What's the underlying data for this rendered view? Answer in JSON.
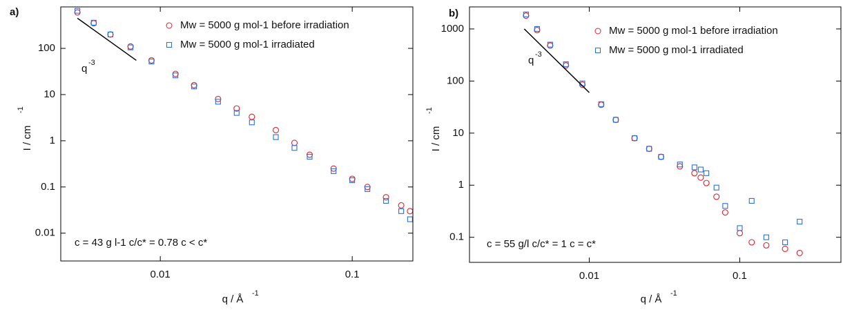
{
  "chart_data": [
    {
      "type": "scatter",
      "panel_label": "a)",
      "log_x": true,
      "log_y": true,
      "xlabel": "q / Å",
      "xlabel_sup": "-1",
      "ylabel": "I / cm",
      "ylabel_sup": "-1",
      "xlim": [
        0.00303,
        0.207
      ],
      "ylim": [
        0.0025,
        790
      ],
      "xticks": [
        0.01,
        0.1
      ],
      "yticks": [
        0.01,
        0.1,
        1,
        10,
        100
      ],
      "legend": "upper right",
      "annotation": "c = 43 g l-1 c/c* = 0.78 c < c*",
      "fit_label": "q",
      "fit_label_sup": "-3",
      "fit_line": {
        "x": [
          0.0037,
          0.0075
        ],
        "y": [
          450,
          55
        ]
      },
      "x": [
        0.0037,
        0.0045,
        0.0055,
        0.007,
        0.009,
        0.012,
        0.015,
        0.02,
        0.025,
        0.03,
        0.04,
        0.05,
        0.06,
        0.08,
        0.1,
        0.12,
        0.15,
        0.18,
        0.2
      ],
      "series": [
        {
          "name": "Mw = 5000 g mol-1 before irradiation",
          "color": "#e0202a",
          "marker": "circle",
          "values": [
            600,
            350,
            200,
            110,
            55,
            28,
            16,
            8,
            5,
            3.3,
            1.7,
            0.9,
            0.5,
            0.25,
            0.15,
            0.1,
            0.06,
            0.04,
            0.03
          ]
        },
        {
          "name": "Mw = 5000 g mol-1 irradiated",
          "color": "#2a6ee0",
          "marker": "square",
          "values": [
            650,
            360,
            200,
            105,
            52,
            26,
            15,
            7,
            4,
            2.5,
            1.2,
            0.7,
            0.45,
            0.22,
            0.14,
            0.09,
            0.05,
            0.03,
            0.02
          ]
        }
      ]
    },
    {
      "type": "scatter",
      "panel_label": "b)",
      "log_x": true,
      "log_y": true,
      "xlabel": "q / Å",
      "xlabel_sup": "-1",
      "ylabel": "I / cm",
      "ylabel_sup": "-1",
      "xlim": [
        0.0016,
        0.47
      ],
      "ylim": [
        0.033,
        2650
      ],
      "xticks": [
        0.01,
        0.1
      ],
      "yticks": [
        0.1,
        1,
        10,
        100,
        1000
      ],
      "legend": "upper right",
      "annotation": "c = 55 g/l c/c* = 1 c = c*",
      "fit_label": "q",
      "fit_label_sup": "-3",
      "fit_line": {
        "x": [
          0.0037,
          0.01
        ],
        "y": [
          1000,
          60
        ]
      },
      "x": [
        0.0038,
        0.0045,
        0.0055,
        0.007,
        0.009,
        0.012,
        0.015,
        0.02,
        0.025,
        0.03,
        0.04,
        0.05,
        0.055,
        0.06,
        0.07,
        0.08,
        0.1,
        0.12,
        0.15,
        0.2,
        0.25
      ],
      "series": [
        {
          "name": "Mw = 5000 g mol-1 before irradiation",
          "color": "#e0202a",
          "marker": "circle",
          "values": [
            1800,
            950,
            480,
            200,
            85,
            35,
            18,
            8,
            5,
            3.5,
            2.3,
            1.7,
            1.4,
            1.1,
            0.6,
            0.3,
            0.12,
            0.08,
            0.07,
            0.06,
            0.05
          ]
        },
        {
          "name": "Mw = 5000 g mol-1 irradiated",
          "color": "#2a6ee0",
          "marker": "square",
          "values": [
            1900,
            1000,
            500,
            210,
            90,
            36,
            18,
            8,
            5,
            3.5,
            2.5,
            2.2,
            2.0,
            1.7,
            0.9,
            0.4,
            0.15,
            0.5,
            0.1,
            0.08,
            0.2
          ]
        }
      ]
    }
  ]
}
